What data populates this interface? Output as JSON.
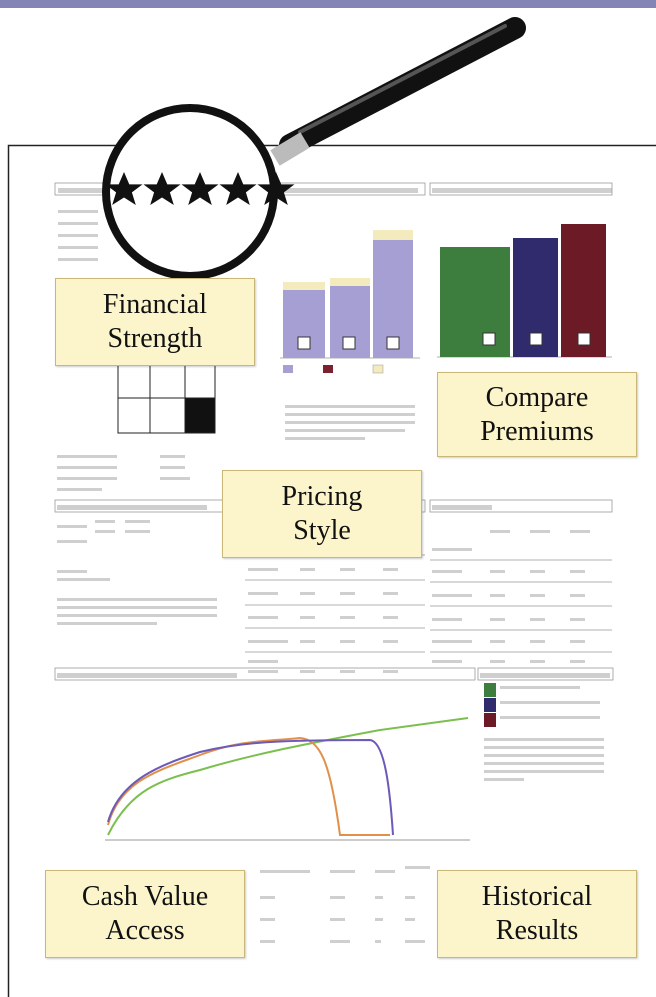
{
  "callouts": [
    "Financial Strength",
    "Compare Premiums",
    "Pricing Style",
    "Cash Value Access",
    "Historical Results"
  ]
}
